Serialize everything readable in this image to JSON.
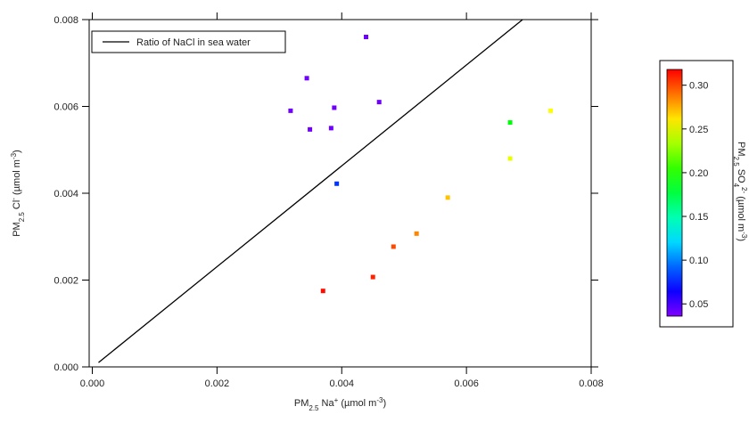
{
  "chart_data": {
    "type": "scatter",
    "xlabel": [
      {
        "text": "PM"
      },
      {
        "sub": "2.5"
      },
      {
        "text": " Na"
      },
      {
        "sup": "+"
      },
      {
        "text": " (µmol m"
      },
      {
        "sup": "-3"
      },
      {
        "text": ")"
      }
    ],
    "ylabel": [
      {
        "text": "PM"
      },
      {
        "sub": "2.5"
      },
      {
        "text": " Cl"
      },
      {
        "sup": "-"
      },
      {
        "text": " (µmol m"
      },
      {
        "sup": "-3"
      },
      {
        "text": ")"
      }
    ],
    "xlim": [
      -5e-05,
      0.008
    ],
    "ylim": [
      0,
      0.008
    ],
    "xticks": [
      {
        "value": 0,
        "label": "0.000"
      },
      {
        "value": 0.002,
        "label": "0.002"
      },
      {
        "value": 0.004,
        "label": "0.004"
      },
      {
        "value": 0.006,
        "label": "0.006"
      },
      {
        "value": 0.008,
        "label": "0.008"
      }
    ],
    "yticks": [
      {
        "value": 0,
        "label": "0.000"
      },
      {
        "value": 0.002,
        "label": "0.002"
      },
      {
        "value": 0.004,
        "label": "0.004"
      },
      {
        "value": 0.006,
        "label": "0.006"
      },
      {
        "value": 0.008,
        "label": "0.008"
      }
    ],
    "legend": "upper left",
    "series": [
      {
        "name": "Ratio of NaCl in sea water",
        "type": "line",
        "color": "#000000",
        "x": [
          0.0001,
          0.0069
        ],
        "values": [
          0.0001,
          0.008
        ]
      },
      {
        "type": "scatter",
        "x": [
          0.00439,
          0.00344,
          0.00318,
          0.00388,
          0.0046,
          0.00349,
          0.00383,
          0.00392,
          0.0067,
          0.00735,
          0.0067,
          0.0057,
          0.0052,
          0.00483,
          0.0045,
          0.0037
        ],
        "values": [
          0.0076,
          0.00665,
          0.0059,
          0.00597,
          0.0061,
          0.00547,
          0.0055,
          0.00422,
          0.00563,
          0.0059,
          0.0048,
          0.0039,
          0.00307,
          0.00277,
          0.00207,
          0.00175
        ],
        "c": [
          0.04,
          0.04,
          0.04,
          0.04,
          0.04,
          0.04,
          0.04,
          0.08,
          0.19,
          0.255,
          0.25,
          0.27,
          0.285,
          0.3,
          0.31,
          0.315
        ]
      }
    ],
    "colorbar": {
      "colormap": "rainbow",
      "label": [
        {
          "text": "PM"
        },
        {
          "sub": "2.5"
        },
        {
          "text": " SO"
        },
        {
          "sub": "4"
        },
        {
          "sup": "2-"
        },
        {
          "text": " (µmol m"
        },
        {
          "sup": "-3"
        },
        {
          "text": ")"
        }
      ],
      "clim": [
        0.036,
        0.318
      ],
      "ticks": [
        {
          "value": 0.05,
          "label": "0.05"
        },
        {
          "value": 0.1,
          "label": "0.10"
        },
        {
          "value": 0.15,
          "label": "0.15"
        },
        {
          "value": 0.2,
          "label": "0.20"
        },
        {
          "value": 0.25,
          "label": "0.25"
        },
        {
          "value": 0.3,
          "label": "0.30"
        }
      ]
    }
  }
}
